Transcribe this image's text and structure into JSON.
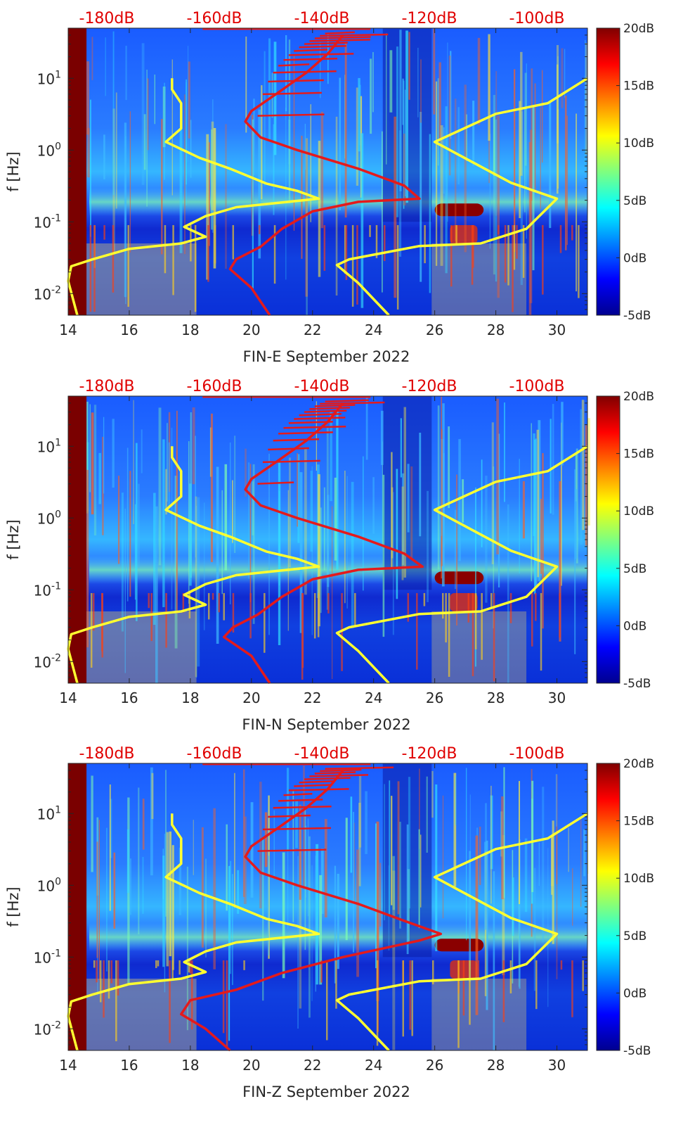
{
  "chart_data": [
    {
      "type": "heatmap",
      "panel": "FIN-E",
      "xlabel": "FIN-E September 2022",
      "ylabel": "f [Hz]",
      "xlim": [
        14,
        31
      ],
      "ylim": [
        0.005,
        50
      ],
      "yscale": "log",
      "x_ticks": [
        "14",
        "16",
        "18",
        "20",
        "22",
        "24",
        "26",
        "28",
        "30"
      ],
      "y_ticks": [
        {
          "value": 0.01,
          "base": "10",
          "exp": "-2"
        },
        {
          "value": 0.1,
          "base": "10",
          "exp": "-1"
        },
        {
          "value": 1,
          "base": "10",
          "exp": "0"
        },
        {
          "value": 10,
          "base": "10",
          "exp": "1"
        }
      ],
      "top_axis_labels": [
        "-180dB",
        "-160dB",
        "-140dB",
        "-120dB",
        "-100dB"
      ],
      "colorbar": {
        "labels": [
          "-5dB",
          "0dB",
          "5dB",
          "10dB",
          "15dB",
          "20dB"
        ],
        "range": [
          -5,
          20
        ],
        "colormap": "jet"
      },
      "series": [
        {
          "name": "yellow reference curve A",
          "color": "#ffff30",
          "points": [
            [
              14.3,
              0.005
            ],
            [
              14.0,
              0.015
            ],
            [
              14.1,
              0.024
            ],
            [
              14.8,
              0.03
            ],
            [
              16.0,
              0.042
            ],
            [
              17.7,
              0.05
            ],
            [
              18.5,
              0.062
            ],
            [
              17.8,
              0.085
            ],
            [
              18.5,
              0.12
            ],
            [
              19.5,
              0.16
            ],
            [
              22.2,
              0.21
            ],
            [
              21.5,
              0.27
            ],
            [
              20.5,
              0.34
            ],
            [
              19.3,
              0.55
            ],
            [
              18.3,
              0.78
            ],
            [
              17.2,
              1.3
            ],
            [
              17.7,
              2.0
            ],
            [
              17.7,
              4.5
            ],
            [
              17.4,
              7.0
            ],
            [
              17.4,
              10.0
            ]
          ]
        },
        {
          "name": "yellow reference curve B",
          "color": "#ffff30",
          "points": [
            [
              24.5,
              0.005
            ],
            [
              23.5,
              0.014
            ],
            [
              22.8,
              0.025
            ],
            [
              23.2,
              0.03
            ],
            [
              25.5,
              0.046
            ],
            [
              27.5,
              0.05
            ],
            [
              29.0,
              0.08
            ],
            [
              29.5,
              0.13
            ],
            [
              30.0,
              0.21
            ],
            [
              28.5,
              0.35
            ],
            [
              26.0,
              1.3
            ],
            [
              28.0,
              3.2
            ],
            [
              29.7,
              4.5
            ],
            [
              31.0,
              10.0
            ]
          ]
        },
        {
          "name": "red noise model curve",
          "color": "#e41a1c",
          "points": [
            [
              20.6,
              0.005
            ],
            [
              20.0,
              0.012
            ],
            [
              19.3,
              0.022
            ],
            [
              19.5,
              0.03
            ],
            [
              20.3,
              0.045
            ],
            [
              21.0,
              0.08
            ],
            [
              22.0,
              0.14
            ],
            [
              23.5,
              0.19
            ],
            [
              25.5,
              0.21
            ],
            [
              25.0,
              0.32
            ],
            [
              23.5,
              0.55
            ],
            [
              21.5,
              1.0
            ],
            [
              20.3,
              1.5
            ],
            [
              19.8,
              2.5
            ],
            [
              20.0,
              3.5
            ],
            [
              20.8,
              6.0
            ],
            [
              21.8,
              12.0
            ],
            [
              22.5,
              22.0
            ],
            [
              23.0,
              40.0
            ]
          ]
        }
      ]
    },
    {
      "type": "heatmap",
      "panel": "FIN-N",
      "xlabel": "FIN-N September 2022",
      "ylabel": "f [Hz]",
      "xlim": [
        14,
        31
      ],
      "ylim": [
        0.005,
        50
      ],
      "yscale": "log",
      "x_ticks": [
        "14",
        "16",
        "18",
        "20",
        "22",
        "24",
        "26",
        "28",
        "30"
      ],
      "y_ticks": [
        {
          "value": 0.01,
          "base": "10",
          "exp": "-2"
        },
        {
          "value": 0.1,
          "base": "10",
          "exp": "-1"
        },
        {
          "value": 1,
          "base": "10",
          "exp": "0"
        },
        {
          "value": 10,
          "base": "10",
          "exp": "1"
        }
      ],
      "top_axis_labels": [
        "-180dB",
        "-160dB",
        "-140dB",
        "-120dB",
        "-100dB"
      ],
      "colorbar": {
        "labels": [
          "-5dB",
          "0dB",
          "5dB",
          "10dB",
          "15dB",
          "20dB"
        ],
        "range": [
          -5,
          20
        ],
        "colormap": "jet"
      },
      "series": [
        {
          "name": "yellow reference curve A",
          "color": "#ffff30",
          "points": [
            [
              14.3,
              0.005
            ],
            [
              14.0,
              0.015
            ],
            [
              14.1,
              0.024
            ],
            [
              14.8,
              0.03
            ],
            [
              16.0,
              0.042
            ],
            [
              17.7,
              0.05
            ],
            [
              18.5,
              0.062
            ],
            [
              17.8,
              0.085
            ],
            [
              18.5,
              0.12
            ],
            [
              19.5,
              0.16
            ],
            [
              22.2,
              0.21
            ],
            [
              21.5,
              0.27
            ],
            [
              20.5,
              0.34
            ],
            [
              19.3,
              0.55
            ],
            [
              18.3,
              0.78
            ],
            [
              17.2,
              1.3
            ],
            [
              17.7,
              2.0
            ],
            [
              17.7,
              4.5
            ],
            [
              17.4,
              7.0
            ],
            [
              17.4,
              10.0
            ]
          ]
        },
        {
          "name": "yellow reference curve B",
          "color": "#ffff30",
          "points": [
            [
              24.5,
              0.005
            ],
            [
              23.5,
              0.014
            ],
            [
              22.8,
              0.025
            ],
            [
              23.2,
              0.03
            ],
            [
              25.5,
              0.046
            ],
            [
              27.5,
              0.05
            ],
            [
              29.0,
              0.08
            ],
            [
              29.5,
              0.13
            ],
            [
              30.0,
              0.21
            ],
            [
              28.5,
              0.35
            ],
            [
              26.0,
              1.3
            ],
            [
              28.0,
              3.2
            ],
            [
              29.7,
              4.5
            ],
            [
              31.0,
              10.0
            ]
          ]
        },
        {
          "name": "red noise model curve",
          "color": "#e41a1c",
          "points": [
            [
              20.6,
              0.005
            ],
            [
              20.0,
              0.012
            ],
            [
              19.1,
              0.022
            ],
            [
              19.4,
              0.03
            ],
            [
              20.2,
              0.045
            ],
            [
              21.0,
              0.08
            ],
            [
              22.0,
              0.14
            ],
            [
              23.5,
              0.19
            ],
            [
              25.6,
              0.21
            ],
            [
              25.0,
              0.32
            ],
            [
              23.5,
              0.55
            ],
            [
              21.5,
              1.0
            ],
            [
              20.3,
              1.5
            ],
            [
              19.8,
              2.5
            ],
            [
              20.0,
              3.5
            ],
            [
              20.8,
              6.0
            ],
            [
              21.8,
              12.0
            ],
            [
              22.5,
              22.0
            ],
            [
              23.0,
              40.0
            ]
          ]
        }
      ]
    },
    {
      "type": "heatmap",
      "panel": "FIN-Z",
      "xlabel": "FIN-Z September 2022",
      "ylabel": "f [Hz]",
      "xlim": [
        14,
        31
      ],
      "ylim": [
        0.005,
        50
      ],
      "yscale": "log",
      "x_ticks": [
        "14",
        "16",
        "18",
        "20",
        "22",
        "24",
        "26",
        "28",
        "30"
      ],
      "y_ticks": [
        {
          "value": 0.01,
          "base": "10",
          "exp": "-2"
        },
        {
          "value": 0.1,
          "base": "10",
          "exp": "-1"
        },
        {
          "value": 1,
          "base": "10",
          "exp": "0"
        },
        {
          "value": 10,
          "base": "10",
          "exp": "1"
        }
      ],
      "top_axis_labels": [
        "-180dB",
        "-160dB",
        "-140dB",
        "-120dB",
        "-100dB"
      ],
      "colorbar": {
        "labels": [
          "-5dB",
          "0dB",
          "5dB",
          "10dB",
          "15dB",
          "20dB"
        ],
        "range": [
          -5,
          20
        ],
        "colormap": "jet"
      },
      "series": [
        {
          "name": "yellow reference curve A",
          "color": "#ffff30",
          "points": [
            [
              14.3,
              0.005
            ],
            [
              14.0,
              0.015
            ],
            [
              14.1,
              0.024
            ],
            [
              14.8,
              0.03
            ],
            [
              16.0,
              0.042
            ],
            [
              17.7,
              0.05
            ],
            [
              18.5,
              0.062
            ],
            [
              17.8,
              0.085
            ],
            [
              18.5,
              0.12
            ],
            [
              19.5,
              0.16
            ],
            [
              22.2,
              0.21
            ],
            [
              21.5,
              0.27
            ],
            [
              20.5,
              0.34
            ],
            [
              19.3,
              0.55
            ],
            [
              18.3,
              0.78
            ],
            [
              17.2,
              1.3
            ],
            [
              17.7,
              2.0
            ],
            [
              17.7,
              4.5
            ],
            [
              17.4,
              7.0
            ],
            [
              17.4,
              10.0
            ]
          ]
        },
        {
          "name": "yellow reference curve B",
          "color": "#ffff30",
          "points": [
            [
              24.5,
              0.005
            ],
            [
              23.5,
              0.014
            ],
            [
              22.8,
              0.025
            ],
            [
              23.2,
              0.03
            ],
            [
              25.5,
              0.046
            ],
            [
              27.5,
              0.05
            ],
            [
              29.0,
              0.08
            ],
            [
              29.5,
              0.13
            ],
            [
              30.0,
              0.21
            ],
            [
              28.5,
              0.35
            ],
            [
              26.0,
              1.3
            ],
            [
              28.0,
              3.2
            ],
            [
              29.7,
              4.5
            ],
            [
              31.0,
              10.0
            ]
          ]
        },
        {
          "name": "red noise model curve",
          "color": "#e41a1c",
          "points": [
            [
              19.3,
              0.005
            ],
            [
              18.5,
              0.01
            ],
            [
              17.7,
              0.016
            ],
            [
              18.0,
              0.025
            ],
            [
              19.5,
              0.035
            ],
            [
              21.0,
              0.06
            ],
            [
              23.0,
              0.1
            ],
            [
              25.5,
              0.17
            ],
            [
              26.2,
              0.21
            ],
            [
              25.0,
              0.32
            ],
            [
              23.5,
              0.55
            ],
            [
              21.5,
              1.0
            ],
            [
              20.3,
              1.5
            ],
            [
              19.8,
              2.5
            ],
            [
              20.0,
              3.5
            ],
            [
              20.8,
              6.0
            ],
            [
              21.8,
              12.0
            ],
            [
              22.5,
              22.0
            ],
            [
              23.0,
              40.0
            ]
          ]
        }
      ]
    }
  ]
}
